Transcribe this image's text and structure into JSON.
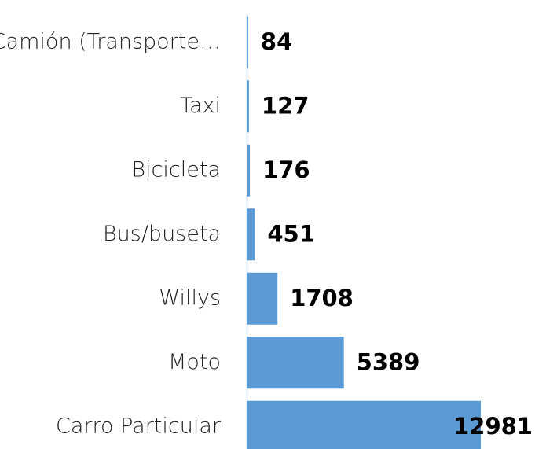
{
  "chart_data": {
    "type": "bar",
    "orientation": "horizontal",
    "categories": [
      "Camión (Transporte…",
      "Taxi",
      "Bicicleta",
      "Bus/buseta",
      "Willys",
      "Moto",
      "Carro Particular"
    ],
    "values": [
      84,
      127,
      176,
      451,
      1708,
      5389,
      12981
    ],
    "color": "#5b9bd5"
  }
}
